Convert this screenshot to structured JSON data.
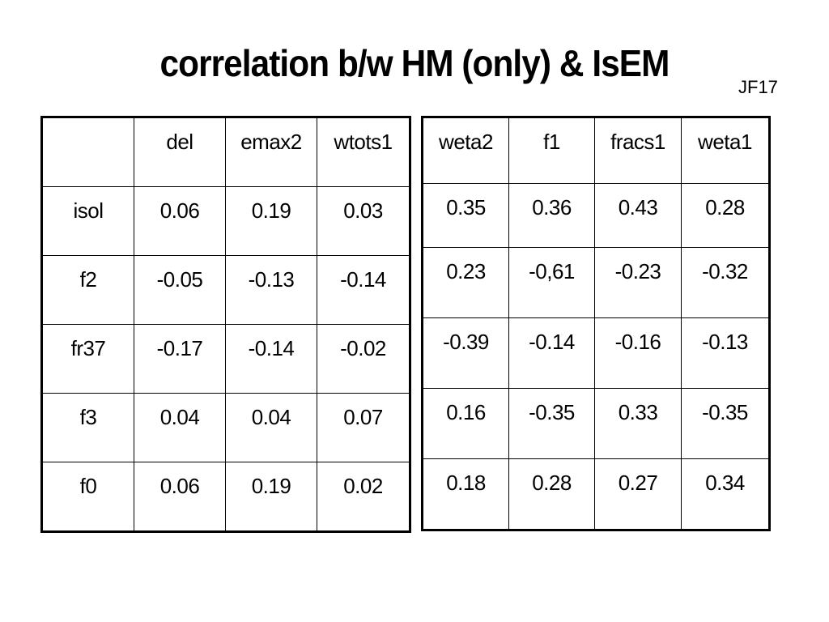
{
  "title": "correlation b/w HM (only) & IsEM",
  "tag": "JF17",
  "left_table": {
    "headers": [
      "",
      "del",
      "emax2",
      "wtots1"
    ],
    "rows": [
      {
        "label": "isol",
        "values": [
          "0.06",
          "0.19",
          "0.03"
        ]
      },
      {
        "label": "f2",
        "values": [
          "-0.05",
          "-0.13",
          "-0.14"
        ]
      },
      {
        "label": "fr37",
        "values": [
          "-0.17",
          "-0.14",
          "-0.02"
        ]
      },
      {
        "label": "f3",
        "values": [
          "0.04",
          "0.04",
          "0.07"
        ]
      },
      {
        "label": "f0",
        "values": [
          "0.06",
          "0.19",
          "0.02"
        ]
      }
    ]
  },
  "right_table": {
    "headers": [
      "weta2",
      "f1",
      "fracs1",
      "weta1"
    ],
    "rows": [
      [
        "0.35",
        "0.36",
        "0.43",
        "0.28"
      ],
      [
        "0.23",
        "-0,61",
        "-0.23",
        "-0.32"
      ],
      [
        "-0.39",
        "-0.14",
        "-0.16",
        "-0.13"
      ],
      [
        "0.16",
        "-0.35",
        "0.33",
        "-0.35"
      ],
      [
        "0.18",
        "0.28",
        "0.27",
        "0.34"
      ]
    ]
  }
}
